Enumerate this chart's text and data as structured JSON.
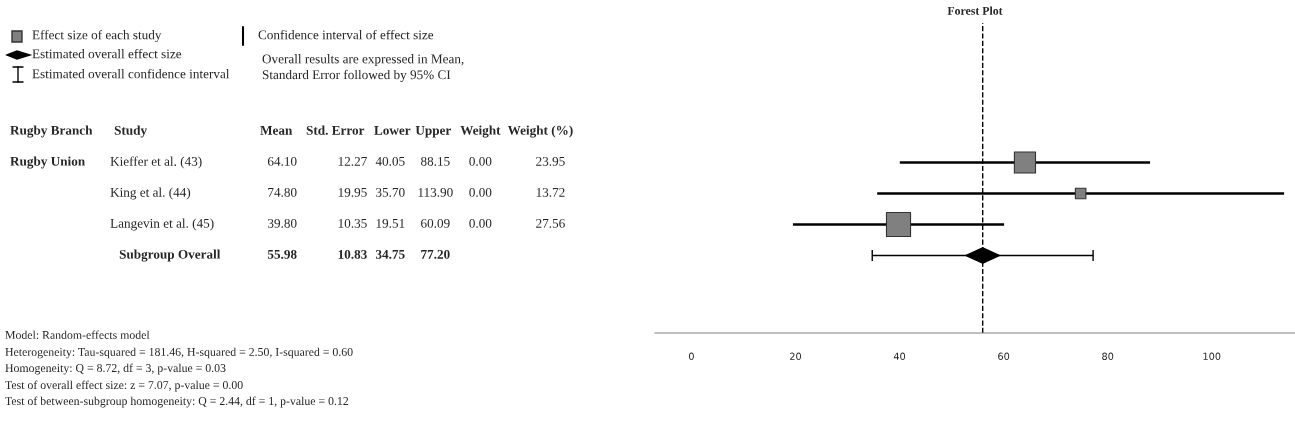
{
  "chart_data": [
    {
      "type": "other",
      "categories": [
        "Rugby Branch",
        "Study",
        "Mean",
        "Std. Error",
        "Lower",
        "Upper",
        "Weight",
        "Weight (%)"
      ],
      "cell_labels": [
        [
          "Rugby Union",
          "Kieffer et al. (43)",
          "64.10",
          "12.27",
          "40.05",
          "88.15",
          "0.00",
          "23.95"
        ],
        [
          null,
          "King et al. (44)",
          "74.80",
          "19.95",
          "35.70",
          "113.90",
          "0.00",
          "13.72"
        ],
        [
          null,
          "Langevin et al. (45)",
          "39.80",
          "10.35",
          "19.51",
          "60.09",
          "0.00",
          "27.56"
        ],
        [
          null,
          "Subgroup Overall",
          "55.98",
          "10.83",
          "34.75",
          "77.20",
          null,
          null
        ]
      ],
      "annotations": [
        "Effect size of each study",
        "Estimated overall effect size",
        "Estimated overall confidence interval",
        "Confidence interval of effect size",
        "Overall results are expressed in Mean,\nStandard Error followed by 95% CI",
        "Model: Random-effects model",
        "Heterogeneity: Tau-squared = 181.46, H-squared = 2.50, I-squared = 0.60",
        "Homogeneity: Q = 8.72, df = 3, p-value = 0.03",
        "Test of overall effect size: z = 7.07, p-value = 0.00",
        "Test of between-subgroup homogeneity: Q = 2.44, df = 1, p-value = 0.12"
      ]
    },
    {
      "type": "scatter",
      "title": "Forest Plot",
      "orientation": "horizontal",
      "categories": [
        null,
        null,
        null,
        null,
        null,
        null,
        null,
        null,
        null,
        null
      ],
      "series": [
        {
          "color": "#808080",
          "marker": "square",
          "values": [
            null,
            null,
            null,
            null,
            64.1,
            74.8,
            39.8,
            null,
            null,
            null
          ],
          "sizes": [
            null,
            null,
            null,
            null,
            0.77,
            0.19,
            1,
            null,
            null,
            null
          ],
          "errors": [
            null,
            null,
            null,
            null,
            [
              40.05,
              88.15
            ],
            [
              35.7,
              113.9
            ],
            [
              19.51,
              60.09
            ],
            null,
            null,
            null
          ]
        },
        {
          "color": "#000000",
          "marker": "diamond",
          "values": [
            null,
            null,
            null,
            null,
            null,
            null,
            null,
            55.98,
            null,
            null
          ],
          "errors": [
            null,
            null,
            null,
            null,
            null,
            null,
            null,
            [
              34.75,
              77.2
            ],
            null,
            null
          ]
        }
      ],
      "ref_lines": [
        {
          "axis": "x",
          "value": 55.98,
          "line_style": "dashed",
          "color": "#000000"
        }
      ],
      "xlim": [
        -7,
        116
      ],
      "xticks": [
        0,
        20,
        40,
        60,
        80,
        100
      ],
      "tick_labels": "x",
      "grid": false
    }
  ]
}
